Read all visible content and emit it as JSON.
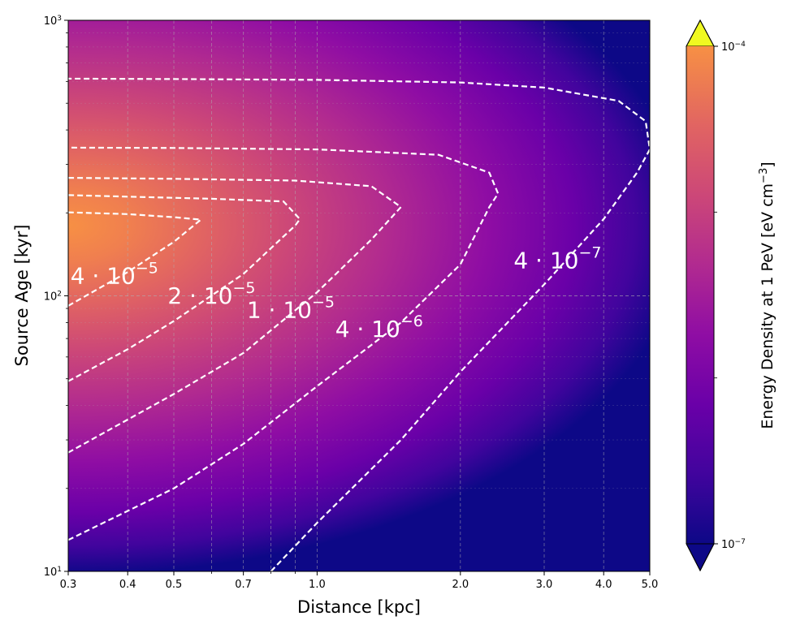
{
  "chart_data": {
    "type": "heatmap",
    "title": "",
    "xlabel": "Distance [kpc]",
    "ylabel": "Source Age [kyr]",
    "xscale": "log",
    "yscale": "log",
    "xlim": [
      0.3,
      5.0
    ],
    "ylim": [
      10,
      1000
    ],
    "x_ticks": [
      {
        "value": 0.3,
        "label": "0.3"
      },
      {
        "value": 0.4,
        "label": "0.4"
      },
      {
        "value": 0.5,
        "label": "0.5"
      },
      {
        "value": 0.7,
        "label": "0.7"
      },
      {
        "value": 1.0,
        "label": "1.0"
      },
      {
        "value": 2.0,
        "label": "2.0"
      },
      {
        "value": 3.0,
        "label": "3.0"
      },
      {
        "value": 4.0,
        "label": "4.0"
      },
      {
        "value": 5.0,
        "label": "5.0"
      }
    ],
    "y_ticks": [
      {
        "value": 10,
        "base": "10",
        "exp": "1"
      },
      {
        "value": 100,
        "base": "10",
        "exp": "2"
      },
      {
        "value": 1000,
        "base": "10",
        "exp": "3"
      }
    ],
    "grid": true,
    "colormap": "plasma",
    "colorbar": {
      "label_main": "Energy Density at 1 PeV [eV cm",
      "label_exp": "−3",
      "label_close": "]",
      "min_value": 1e-07,
      "max_value": 0.0001,
      "scale": "log",
      "extend": "both",
      "ticks": [
        {
          "value": 0.0001,
          "base": "10",
          "exp": "−4"
        },
        {
          "value": 1e-07,
          "base": "10",
          "exp": "−7"
        }
      ],
      "under_color": "#0d0887",
      "over_color": "#f0f921"
    },
    "contours": [
      {
        "level": 4e-05,
        "coef": "4 · 10",
        "exp": "−5",
        "path": [
          [
            0.3,
            92
          ],
          [
            0.4,
            122
          ],
          [
            0.5,
            157
          ],
          [
            0.57,
            189
          ],
          [
            0.5,
            193
          ],
          [
            0.4,
            198
          ],
          [
            0.3,
            201
          ]
        ]
      },
      {
        "level": 2e-05,
        "coef": "2 · 10",
        "exp": "−5",
        "path": [
          [
            0.3,
            49
          ],
          [
            0.4,
            64
          ],
          [
            0.5,
            81
          ],
          [
            0.7,
            120
          ],
          [
            0.9,
            180
          ],
          [
            0.92,
            190
          ],
          [
            0.85,
            220
          ],
          [
            0.6,
            225
          ],
          [
            0.4,
            229
          ],
          [
            0.3,
            232
          ]
        ]
      },
      {
        "level": 1e-05,
        "coef": "1 · 10",
        "exp": "−5",
        "path": [
          [
            0.3,
            27
          ],
          [
            0.5,
            44
          ],
          [
            0.7,
            62
          ],
          [
            1.0,
            103
          ],
          [
            1.3,
            160
          ],
          [
            1.5,
            210
          ],
          [
            1.3,
            250
          ],
          [
            0.9,
            262
          ],
          [
            0.5,
            266
          ],
          [
            0.3,
            268
          ]
        ]
      },
      {
        "level": 4e-06,
        "coef": "4 · 10",
        "exp": "−6",
        "path": [
          [
            0.3,
            13
          ],
          [
            0.5,
            20
          ],
          [
            0.7,
            29
          ],
          [
            1.0,
            47
          ],
          [
            1.5,
            80
          ],
          [
            2.0,
            130
          ],
          [
            2.3,
            210
          ],
          [
            2.4,
            235
          ],
          [
            2.3,
            280
          ],
          [
            1.8,
            325
          ],
          [
            1.0,
            340
          ],
          [
            0.5,
            344
          ],
          [
            0.3,
            345
          ]
        ]
      },
      {
        "level": 4e-07,
        "coef": "4 · 10",
        "exp": "−7",
        "path": [
          [
            0.8,
            10
          ],
          [
            1.0,
            15
          ],
          [
            1.5,
            30
          ],
          [
            2.0,
            53
          ],
          [
            3.0,
            110
          ],
          [
            4.0,
            190
          ],
          [
            4.7,
            280
          ],
          [
            5.0,
            340
          ],
          [
            4.9,
            430
          ],
          [
            4.3,
            510
          ],
          [
            3.0,
            570
          ],
          [
            2.0,
            595
          ],
          [
            1.0,
            608
          ],
          [
            0.5,
            612
          ],
          [
            0.3,
            614
          ]
        ]
      }
    ],
    "contour_labels": [
      {
        "level": 4e-05,
        "coef": "4 · 10",
        "exp": "−5",
        "x": 0.375,
        "y": 117
      },
      {
        "level": 2e-05,
        "coef": "2 · 10",
        "exp": "−5",
        "x": 0.6,
        "y": 99
      },
      {
        "level": 1e-05,
        "coef": "1 · 10",
        "exp": "−5",
        "x": 0.88,
        "y": 88
      },
      {
        "level": 4e-06,
        "coef": "4 · 10",
        "exp": "−6",
        "x": 1.35,
        "y": 75
      },
      {
        "level": 4e-07,
        "coef": "4 · 10",
        "exp": "−7",
        "x": 3.2,
        "y": 133
      }
    ]
  }
}
